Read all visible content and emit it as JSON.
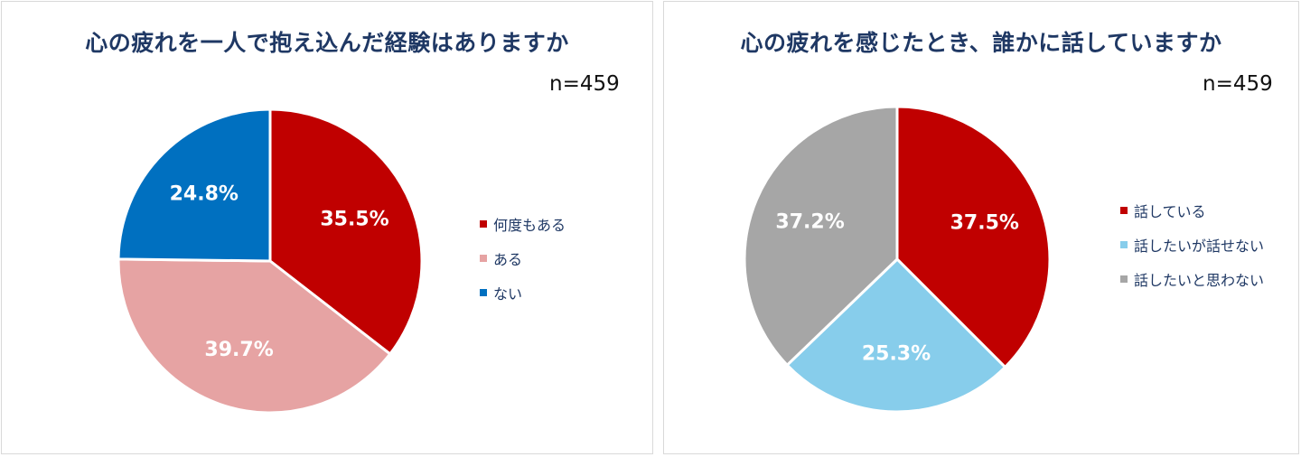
{
  "chart_data": [
    {
      "type": "pie",
      "title": "心の疲れを一人で抱え込んだ経験はありますか",
      "annotation": "n=459",
      "categories": [
        "何度もある",
        "ある",
        "ない"
      ],
      "values": [
        35.5,
        39.7,
        24.8
      ],
      "value_labels": [
        "35.5%",
        "39.7%",
        "24.8%"
      ],
      "colors": [
        "#C00000",
        "#E6A3A3",
        "#0070C0"
      ],
      "legend_position": "right"
    },
    {
      "type": "pie",
      "title": "心の疲れを感じたとき、誰かに話していますか",
      "annotation": "n=459",
      "categories": [
        "話している",
        "話したいが話せない",
        "話したいと思わない"
      ],
      "values": [
        37.5,
        25.3,
        37.2
      ],
      "value_labels": [
        "37.5%",
        "25.3%",
        "37.2%"
      ],
      "colors": [
        "#C00000",
        "#87CDEB",
        "#A6A6A6"
      ],
      "legend_position": "right"
    }
  ]
}
